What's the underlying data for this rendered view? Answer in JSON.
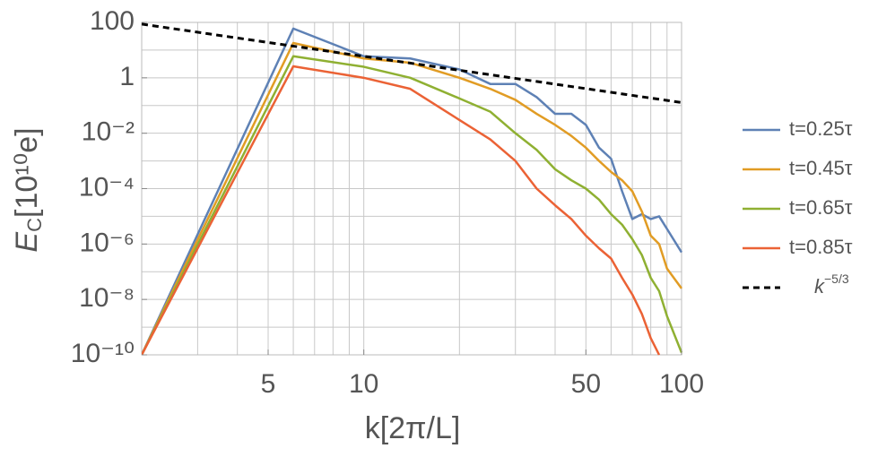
{
  "chart_data": {
    "type": "line",
    "xlabel": "k[2π/L]",
    "ylabel": "EC[10¹⁰e]",
    "log_x": true,
    "log_y": true,
    "grid": true,
    "legend": "right",
    "xlim": [
      2,
      100
    ],
    "ylim": [
      1e-10,
      100
    ],
    "xticks": [
      5,
      10,
      50,
      100
    ],
    "yticks": [
      100,
      1,
      {
        "value": 0.01,
        "label": "10⁻²"
      },
      {
        "value": 0.0001,
        "label": "10⁻⁴"
      },
      {
        "value": 1e-06,
        "label": "10⁻⁶"
      },
      {
        "value": 1e-08,
        "label": "10⁻⁸"
      },
      {
        "value": 1e-10,
        "label": "10⁻¹⁰"
      }
    ],
    "xgrid": [
      2,
      3,
      4,
      5,
      6,
      7,
      8,
      9,
      10,
      20,
      30,
      40,
      50,
      60,
      70,
      80,
      90,
      100
    ],
    "ygrid": [
      100,
      10,
      1,
      0.1,
      0.01,
      0.001,
      0.0001,
      1e-05,
      1e-06,
      1e-07,
      1e-08,
      1e-09,
      1e-10
    ],
    "series": [
      {
        "name": "t=0.25τ",
        "color": "#5e81b5",
        "dash": false,
        "x": [
          2,
          6,
          10,
          14,
          20,
          25,
          30,
          35,
          40,
          45,
          50,
          55,
          60,
          65,
          70,
          75,
          80,
          85,
          90,
          100
        ],
        "values": [
          1e-10,
          60,
          6,
          5,
          2,
          0.6,
          0.6,
          0.2,
          0.05,
          0.05,
          0.02,
          0.003,
          0.0012,
          8e-05,
          8e-06,
          1.2e-05,
          8e-06,
          1e-05,
          3.5e-06,
          5e-07
        ]
      },
      {
        "name": "t=0.45τ",
        "color": "#e19c24",
        "dash": false,
        "x": [
          2,
          6,
          10,
          14,
          20,
          25,
          30,
          35,
          40,
          45,
          50,
          55,
          60,
          65,
          70,
          75,
          80,
          85,
          90,
          100
        ],
        "values": [
          1e-10,
          18,
          5,
          3.5,
          1,
          0.4,
          0.16,
          0.05,
          0.02,
          0.008,
          0.003,
          0.001,
          0.0004,
          0.0002,
          8e-05,
          1.5e-05,
          2e-06,
          1e-06,
          1.3e-07,
          2.5e-08
        ]
      },
      {
        "name": "t=0.65τ",
        "color": "#8fb032",
        "dash": false,
        "x": [
          2,
          6,
          10,
          14,
          20,
          25,
          30,
          35,
          40,
          45,
          50,
          55,
          60,
          65,
          70,
          75,
          80,
          85,
          90,
          100
        ],
        "values": [
          1e-10,
          6,
          2.5,
          1,
          0.18,
          0.06,
          0.01,
          0.0025,
          0.0005,
          0.0002,
          0.0001,
          4e-05,
          1.2e-05,
          5e-06,
          1.5e-06,
          4e-07,
          6e-08,
          2e-08,
          2.5e-09,
          1.2e-10
        ]
      },
      {
        "name": "t=0.85τ",
        "color": "#eb6235",
        "dash": false,
        "x": [
          2,
          6,
          10,
          14,
          20,
          25,
          30,
          35,
          40,
          45,
          50,
          55,
          60,
          65,
          70,
          75,
          80,
          85
        ],
        "values": [
          1e-10,
          2.6,
          1,
          0.4,
          0.03,
          0.006,
          0.001,
          0.0001,
          2.5e-05,
          8e-06,
          2e-06,
          7e-07,
          3e-07,
          6e-08,
          1.5e-08,
          3e-09,
          4e-10,
          1e-10
        ]
      },
      {
        "name": "k−5/3",
        "color": "#000000",
        "dash": true,
        "x": [
          2,
          100
        ],
        "values": [
          87,
          0.128
        ]
      }
    ]
  }
}
